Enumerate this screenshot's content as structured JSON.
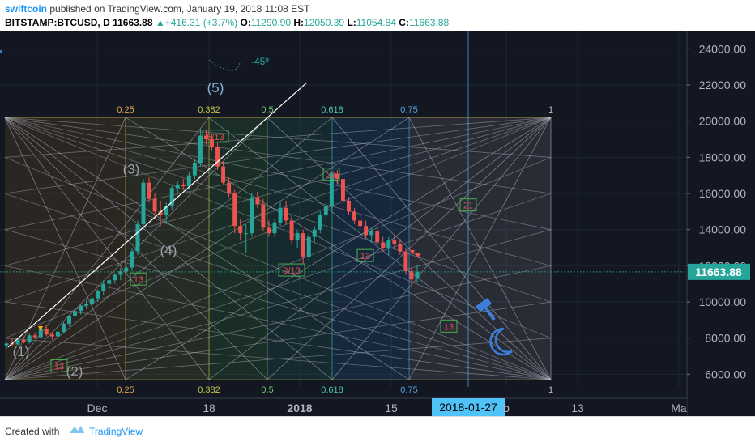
{
  "header": {
    "author": "swiftcoin",
    "published": "published on TradingView.com, January 19, 2018 11:08 EST",
    "symbol": "BITSTAMP:BTCUSD, D",
    "price": "11663.88",
    "change_icon": "triangle-up-icon",
    "change": "+416.31 (+3.7%)",
    "o_label": "O:",
    "o_value": "11290.90",
    "h_label": "H:",
    "h_value": "12050.39",
    "l_label": "L:",
    "l_value": "11054.84",
    "c_label": "C:",
    "c_value": "11663.88"
  },
  "footer": {
    "created": "Created with",
    "brand": "TradingView",
    "logo_icon": "tradingview-logo-icon"
  },
  "colors": {
    "bg": "#131722",
    "up": "#26a69a",
    "down": "#ef5350",
    "price_label": "#26a69a",
    "date_label": "#4fc3f7"
  },
  "chart_data": {
    "type": "candlestick",
    "symbol": "BITSTAMP:BTCUSD",
    "interval": "D",
    "ylim": [
      5300,
      25000
    ],
    "y_ticks": [
      "24000.00",
      "22000.00",
      "20000.00",
      "18000.00",
      "16000.00",
      "14000.00",
      "12000.00",
      "10000.00",
      "8000.00",
      "6000.00"
    ],
    "x_ticks": [
      "Dec",
      "18",
      "2018",
      "15",
      "2018-01-27",
      "b",
      "13",
      "Ma"
    ],
    "last_price": "11663.88",
    "cursor_date": "2018-01-27",
    "fib_top": [
      "0.25",
      "0.382",
      "0.5",
      "0.618",
      "0.75",
      "1"
    ],
    "fib_bottom": [
      "0.25",
      "0.382",
      "0.5",
      "0.618",
      "0.75",
      "1"
    ],
    "annotations": {
      "waves": [
        "(1)",
        "(2)",
        "(3)",
        "(4)",
        "(5)"
      ],
      "angle": "-45º",
      "box_labels": [
        "13",
        "13",
        "5/13",
        "21",
        "8/13",
        "13",
        "21",
        "13"
      ]
    },
    "candles": [
      {
        "o": 7600,
        "h": 7800,
        "l": 7400,
        "c": 7700
      },
      {
        "o": 7700,
        "h": 7950,
        "l": 7550,
        "c": 7650
      },
      {
        "o": 7650,
        "h": 8000,
        "l": 7600,
        "c": 7900
      },
      {
        "o": 7900,
        "h": 8100,
        "l": 7700,
        "c": 7800
      },
      {
        "o": 7800,
        "h": 8250,
        "l": 7700,
        "c": 8150
      },
      {
        "o": 8150,
        "h": 8300,
        "l": 7950,
        "c": 8050
      },
      {
        "o": 8050,
        "h": 8600,
        "l": 8000,
        "c": 8500
      },
      {
        "o": 8500,
        "h": 8700,
        "l": 8100,
        "c": 8200
      },
      {
        "o": 8200,
        "h": 8350,
        "l": 7900,
        "c": 8100
      },
      {
        "o": 8100,
        "h": 8450,
        "l": 8000,
        "c": 8350
      },
      {
        "o": 8350,
        "h": 8900,
        "l": 8250,
        "c": 8800
      },
      {
        "o": 8800,
        "h": 9300,
        "l": 8650,
        "c": 9200
      },
      {
        "o": 9200,
        "h": 9600,
        "l": 9000,
        "c": 9500
      },
      {
        "o": 9500,
        "h": 9900,
        "l": 9300,
        "c": 9800
      },
      {
        "o": 9800,
        "h": 10100,
        "l": 9600,
        "c": 9900
      },
      {
        "o": 9900,
        "h": 10300,
        "l": 9700,
        "c": 10200
      },
      {
        "o": 10200,
        "h": 10700,
        "l": 10000,
        "c": 10600
      },
      {
        "o": 10600,
        "h": 11200,
        "l": 10400,
        "c": 11000
      },
      {
        "o": 11000,
        "h": 11300,
        "l": 10700,
        "c": 11200
      },
      {
        "o": 11200,
        "h": 11600,
        "l": 11000,
        "c": 11500
      },
      {
        "o": 11500,
        "h": 11900,
        "l": 11200,
        "c": 11700
      },
      {
        "o": 11700,
        "h": 12100,
        "l": 11500,
        "c": 11900
      },
      {
        "o": 11900,
        "h": 13000,
        "l": 11700,
        "c": 12800
      },
      {
        "o": 12800,
        "h": 14500,
        "l": 12600,
        "c": 14300
      },
      {
        "o": 14300,
        "h": 16800,
        "l": 14000,
        "c": 16600
      },
      {
        "o": 16600,
        "h": 16900,
        "l": 15500,
        "c": 15700
      },
      {
        "o": 15700,
        "h": 16000,
        "l": 14600,
        "c": 15000
      },
      {
        "o": 15000,
        "h": 15600,
        "l": 14200,
        "c": 14800
      },
      {
        "o": 14800,
        "h": 15500,
        "l": 14300,
        "c": 15300
      },
      {
        "o": 15300,
        "h": 16500,
        "l": 15100,
        "c": 16300
      },
      {
        "o": 16300,
        "h": 16700,
        "l": 16000,
        "c": 16500
      },
      {
        "o": 16500,
        "h": 16800,
        "l": 16200,
        "c": 16400
      },
      {
        "o": 16400,
        "h": 17200,
        "l": 16200,
        "c": 17000
      },
      {
        "o": 17000,
        "h": 17900,
        "l": 16800,
        "c": 17700
      },
      {
        "o": 17700,
        "h": 19600,
        "l": 17500,
        "c": 19200
      },
      {
        "o": 19200,
        "h": 19500,
        "l": 18700,
        "c": 19000
      },
      {
        "o": 19000,
        "h": 19300,
        "l": 18400,
        "c": 18600
      },
      {
        "o": 18600,
        "h": 18800,
        "l": 17300,
        "c": 17500
      },
      {
        "o": 17500,
        "h": 17800,
        "l": 16500,
        "c": 16600
      },
      {
        "o": 16600,
        "h": 16900,
        "l": 15800,
        "c": 16000
      },
      {
        "o": 16000,
        "h": 16200,
        "l": 13800,
        "c": 14200
      },
      {
        "o": 14200,
        "h": 14600,
        "l": 13400,
        "c": 13800
      },
      {
        "o": 13800,
        "h": 14300,
        "l": 12700,
        "c": 13800
      },
      {
        "o": 13800,
        "h": 16000,
        "l": 13600,
        "c": 15800
      },
      {
        "o": 15800,
        "h": 16100,
        "l": 15200,
        "c": 15400
      },
      {
        "o": 15400,
        "h": 15700,
        "l": 13900,
        "c": 14100
      },
      {
        "o": 14100,
        "h": 14500,
        "l": 13600,
        "c": 13800
      },
      {
        "o": 13800,
        "h": 14600,
        "l": 13600,
        "c": 14400
      },
      {
        "o": 14400,
        "h": 15500,
        "l": 14200,
        "c": 15200
      },
      {
        "o": 15200,
        "h": 15600,
        "l": 14300,
        "c": 14500
      },
      {
        "o": 14500,
        "h": 14800,
        "l": 13200,
        "c": 13400
      },
      {
        "o": 13400,
        "h": 14000,
        "l": 13000,
        "c": 13800
      },
      {
        "o": 13800,
        "h": 14000,
        "l": 12100,
        "c": 12500
      },
      {
        "o": 12500,
        "h": 13800,
        "l": 12300,
        "c": 13600
      },
      {
        "o": 13600,
        "h": 14200,
        "l": 13300,
        "c": 14000
      },
      {
        "o": 14000,
        "h": 15000,
        "l": 13800,
        "c": 14800
      },
      {
        "o": 14800,
        "h": 15500,
        "l": 14600,
        "c": 15300
      },
      {
        "o": 15300,
        "h": 17200,
        "l": 15100,
        "c": 17100
      },
      {
        "o": 17100,
        "h": 17300,
        "l": 16500,
        "c": 16800
      },
      {
        "o": 16800,
        "h": 17100,
        "l": 15400,
        "c": 15600
      },
      {
        "o": 15600,
        "h": 15800,
        "l": 14800,
        "c": 15000
      },
      {
        "o": 15000,
        "h": 15200,
        "l": 14300,
        "c": 14500
      },
      {
        "o": 14500,
        "h": 14800,
        "l": 13900,
        "c": 14200
      },
      {
        "o": 14200,
        "h": 14500,
        "l": 13500,
        "c": 13700
      },
      {
        "o": 13700,
        "h": 14100,
        "l": 13300,
        "c": 13900
      },
      {
        "o": 13900,
        "h": 14200,
        "l": 13100,
        "c": 13300
      },
      {
        "o": 13300,
        "h": 13600,
        "l": 12800,
        "c": 13000
      },
      {
        "o": 13000,
        "h": 13600,
        "l": 12600,
        "c": 13400
      },
      {
        "o": 13400,
        "h": 13700,
        "l": 12900,
        "c": 13200
      },
      {
        "o": 13200,
        "h": 13500,
        "l": 12600,
        "c": 12800
      },
      {
        "o": 12800,
        "h": 13000,
        "l": 11500,
        "c": 11700
      },
      {
        "o": 11700,
        "h": 11900,
        "l": 11000,
        "c": 11250
      },
      {
        "o": 11290,
        "h": 12050,
        "l": 11054,
        "c": 11663
      }
    ]
  }
}
